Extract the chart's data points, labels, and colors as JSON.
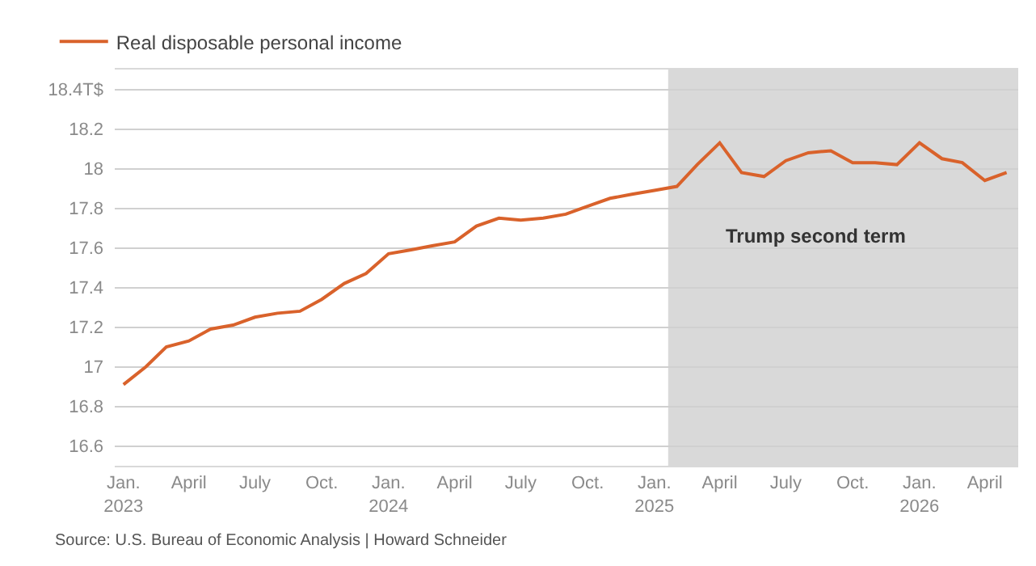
{
  "chart_data": {
    "type": "line",
    "x": [
      "2023-01",
      "2023-02",
      "2023-03",
      "2023-04",
      "2023-05",
      "2023-06",
      "2023-07",
      "2023-08",
      "2023-09",
      "2023-10",
      "2023-11",
      "2023-12",
      "2024-01",
      "2024-02",
      "2024-03",
      "2024-04",
      "2024-05",
      "2024-06",
      "2024-07",
      "2024-08",
      "2024-09",
      "2024-10",
      "2024-11",
      "2024-12",
      "2025-01",
      "2025-02",
      "2025-03",
      "2025-04",
      "2025-05",
      "2025-06",
      "2025-07",
      "2025-08",
      "2025-09",
      "2025-10",
      "2025-11",
      "2025-12",
      "2026-01",
      "2026-02",
      "2026-03",
      "2026-04",
      "2026-05"
    ],
    "series": [
      {
        "name": "Real disposable personal income",
        "color": "#d9622b",
        "values": [
          16.91,
          17.0,
          17.1,
          17.13,
          17.19,
          17.21,
          17.25,
          17.27,
          17.28,
          17.34,
          17.42,
          17.47,
          17.57,
          17.59,
          17.61,
          17.63,
          17.71,
          17.75,
          17.74,
          17.75,
          17.77,
          17.81,
          17.85,
          17.87,
          17.89,
          17.91,
          18.02,
          18.13,
          17.98,
          17.96,
          18.04,
          18.08,
          18.09,
          18.03,
          18.03,
          18.02,
          18.13,
          18.05,
          18.03,
          17.94,
          17.98
        ]
      }
    ],
    "xlim": [
      "2022-12-20",
      "2026-05-17"
    ],
    "xticks": [
      {
        "value": "2023-01",
        "label": "Jan.\n2023"
      },
      {
        "value": "2023-04",
        "label": "April"
      },
      {
        "value": "2023-07",
        "label": "July"
      },
      {
        "value": "2023-10",
        "label": "Oct."
      },
      {
        "value": "2024-01",
        "label": "Jan.\n2024"
      },
      {
        "value": "2024-04",
        "label": "April"
      },
      {
        "value": "2024-07",
        "label": "July"
      },
      {
        "value": "2024-10",
        "label": "Oct."
      },
      {
        "value": "2025-01",
        "label": "Jan.\n2025"
      },
      {
        "value": "2025-04",
        "label": "April"
      },
      {
        "value": "2025-07",
        "label": "July"
      },
      {
        "value": "2025-10",
        "label": "Oct."
      },
      {
        "value": "2026-01",
        "label": "Jan.\n2026"
      },
      {
        "value": "2026-04",
        "label": "April"
      }
    ],
    "ylim": [
      16.5,
      18.5
    ],
    "yticks": [
      16.6,
      16.8,
      17,
      17.2,
      17.4,
      17.6,
      17.8,
      18,
      18.2,
      {
        "value": 18.4,
        "label": "18.4T$"
      }
    ],
    "grid": "y",
    "legend": "top left",
    "marker": "none",
    "line_style": "solid",
    "bands": [
      {
        "axis": "x",
        "from": "2025-01-20",
        "to": "2026-05-17",
        "label": "Trump second term",
        "color": "#d9d9d9"
      }
    ],
    "annotations": [
      "Source: U.S. Bureau of Economic Analysis | Howard Schneider"
    ]
  }
}
